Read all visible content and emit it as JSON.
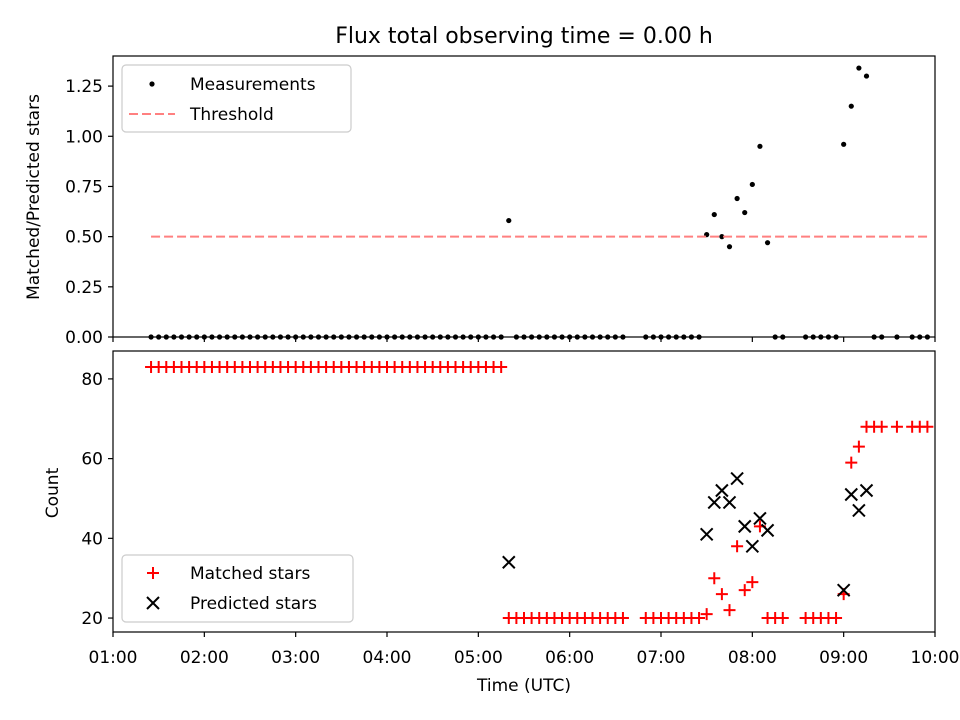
{
  "chart_data": [
    {
      "type": "scatter",
      "title": "Flux total observing time = 0.00 h",
      "xlabel": "",
      "ylabel": "Matched/Predicted stars",
      "xlim": [
        "01:00",
        "10:00"
      ],
      "ylim": [
        0,
        1.4
      ],
      "x_tick_labels": [],
      "y_tick_labels": [
        "0.00",
        "0.25",
        "0.50",
        "0.75",
        "1.00",
        "1.25"
      ],
      "legend_position": "top-left",
      "series": [
        {
          "name": "Measurements",
          "marker": "dot",
          "color": "#000000",
          "points": [
            [
              "01:25",
              0
            ],
            [
              "01:30",
              0
            ],
            [
              "01:35",
              0
            ],
            [
              "01:40",
              0
            ],
            [
              "01:45",
              0
            ],
            [
              "01:50",
              0
            ],
            [
              "01:55",
              0
            ],
            [
              "02:00",
              0
            ],
            [
              "02:05",
              0
            ],
            [
              "02:10",
              0
            ],
            [
              "02:15",
              0
            ],
            [
              "02:20",
              0
            ],
            [
              "02:25",
              0
            ],
            [
              "02:30",
              0
            ],
            [
              "02:35",
              0
            ],
            [
              "02:40",
              0
            ],
            [
              "02:45",
              0
            ],
            [
              "02:50",
              0
            ],
            [
              "02:55",
              0
            ],
            [
              "03:00",
              0
            ],
            [
              "03:05",
              0
            ],
            [
              "03:10",
              0
            ],
            [
              "03:15",
              0
            ],
            [
              "03:20",
              0
            ],
            [
              "03:25",
              0
            ],
            [
              "03:30",
              0
            ],
            [
              "03:35",
              0
            ],
            [
              "03:40",
              0
            ],
            [
              "03:45",
              0
            ],
            [
              "03:50",
              0
            ],
            [
              "03:55",
              0
            ],
            [
              "04:00",
              0
            ],
            [
              "04:05",
              0
            ],
            [
              "04:10",
              0
            ],
            [
              "04:15",
              0
            ],
            [
              "04:20",
              0
            ],
            [
              "04:25",
              0
            ],
            [
              "04:30",
              0
            ],
            [
              "04:35",
              0
            ],
            [
              "04:40",
              0
            ],
            [
              "04:45",
              0
            ],
            [
              "04:50",
              0
            ],
            [
              "04:55",
              0
            ],
            [
              "05:00",
              0
            ],
            [
              "05:05",
              0
            ],
            [
              "05:10",
              0
            ],
            [
              "05:15",
              0
            ],
            [
              "05:20",
              0.58
            ],
            [
              "05:25",
              0
            ],
            [
              "05:30",
              0
            ],
            [
              "05:35",
              0
            ],
            [
              "05:40",
              0
            ],
            [
              "05:45",
              0
            ],
            [
              "05:50",
              0
            ],
            [
              "05:55",
              0
            ],
            [
              "06:00",
              0
            ],
            [
              "06:05",
              0
            ],
            [
              "06:10",
              0
            ],
            [
              "06:15",
              0
            ],
            [
              "06:20",
              0
            ],
            [
              "06:25",
              0
            ],
            [
              "06:30",
              0
            ],
            [
              "06:35",
              0
            ],
            [
              "06:50",
              0
            ],
            [
              "06:55",
              0
            ],
            [
              "07:00",
              0
            ],
            [
              "07:05",
              0
            ],
            [
              "07:10",
              0
            ],
            [
              "07:15",
              0
            ],
            [
              "07:20",
              0
            ],
            [
              "07:25",
              0
            ],
            [
              "07:30",
              0.51
            ],
            [
              "07:35",
              0.61
            ],
            [
              "07:40",
              0.5
            ],
            [
              "07:45",
              0.45
            ],
            [
              "07:50",
              0.69
            ],
            [
              "07:55",
              0.62
            ],
            [
              "08:00",
              0.76
            ],
            [
              "08:05",
              0.95
            ],
            [
              "08:10",
              0.47
            ],
            [
              "08:15",
              0
            ],
            [
              "08:20",
              0
            ],
            [
              "08:35",
              0
            ],
            [
              "08:40",
              0
            ],
            [
              "08:45",
              0
            ],
            [
              "08:50",
              0
            ],
            [
              "08:55",
              0
            ],
            [
              "09:00",
              0.96
            ],
            [
              "09:05",
              1.15
            ],
            [
              "09:10",
              1.34
            ],
            [
              "09:15",
              1.3
            ],
            [
              "09:20",
              0
            ],
            [
              "09:25",
              0
            ],
            [
              "09:35",
              0
            ],
            [
              "09:45",
              0
            ],
            [
              "09:50",
              0
            ],
            [
              "09:55",
              0
            ]
          ]
        },
        {
          "name": "Threshold",
          "line_style": "dashed",
          "color": "#ff8080",
          "points": [
            [
              "01:25",
              0.5
            ],
            [
              "09:55",
              0.5
            ]
          ]
        }
      ]
    },
    {
      "type": "scatter",
      "title": "",
      "xlabel": "Time (UTC)",
      "ylabel": "Count",
      "xlim": [
        "01:00",
        "10:00"
      ],
      "ylim": [
        16.5,
        87
      ],
      "x_tick_labels": [
        "01:00",
        "02:00",
        "03:00",
        "04:00",
        "05:00",
        "06:00",
        "07:00",
        "08:00",
        "09:00",
        "10:00"
      ],
      "y_tick_labels": [
        "20",
        "40",
        "60",
        "80"
      ],
      "legend_position": "bottom-left",
      "series": [
        {
          "name": "Matched stars",
          "marker": "plus",
          "color": "#ff0000",
          "points": [
            [
              "01:25",
              83
            ],
            [
              "01:30",
              83
            ],
            [
              "01:35",
              83
            ],
            [
              "01:40",
              83
            ],
            [
              "01:45",
              83
            ],
            [
              "01:50",
              83
            ],
            [
              "01:55",
              83
            ],
            [
              "02:00",
              83
            ],
            [
              "02:05",
              83
            ],
            [
              "02:10",
              83
            ],
            [
              "02:15",
              83
            ],
            [
              "02:20",
              83
            ],
            [
              "02:25",
              83
            ],
            [
              "02:30",
              83
            ],
            [
              "02:35",
              83
            ],
            [
              "02:40",
              83
            ],
            [
              "02:45",
              83
            ],
            [
              "02:50",
              83
            ],
            [
              "02:55",
              83
            ],
            [
              "03:00",
              83
            ],
            [
              "03:05",
              83
            ],
            [
              "03:10",
              83
            ],
            [
              "03:15",
              83
            ],
            [
              "03:20",
              83
            ],
            [
              "03:25",
              83
            ],
            [
              "03:30",
              83
            ],
            [
              "03:35",
              83
            ],
            [
              "03:40",
              83
            ],
            [
              "03:45",
              83
            ],
            [
              "03:50",
              83
            ],
            [
              "03:55",
              83
            ],
            [
              "04:00",
              83
            ],
            [
              "04:05",
              83
            ],
            [
              "04:10",
              83
            ],
            [
              "04:15",
              83
            ],
            [
              "04:20",
              83
            ],
            [
              "04:25",
              83
            ],
            [
              "04:30",
              83
            ],
            [
              "04:35",
              83
            ],
            [
              "04:40",
              83
            ],
            [
              "04:45",
              83
            ],
            [
              "04:50",
              83
            ],
            [
              "04:55",
              83
            ],
            [
              "05:00",
              83
            ],
            [
              "05:05",
              83
            ],
            [
              "05:10",
              83
            ],
            [
              "05:15",
              83
            ],
            [
              "05:20",
              20
            ],
            [
              "05:25",
              20
            ],
            [
              "05:30",
              20
            ],
            [
              "05:35",
              20
            ],
            [
              "05:40",
              20
            ],
            [
              "05:45",
              20
            ],
            [
              "05:50",
              20
            ],
            [
              "05:55",
              20
            ],
            [
              "06:00",
              20
            ],
            [
              "06:05",
              20
            ],
            [
              "06:10",
              20
            ],
            [
              "06:15",
              20
            ],
            [
              "06:20",
              20
            ],
            [
              "06:25",
              20
            ],
            [
              "06:30",
              20
            ],
            [
              "06:35",
              20
            ],
            [
              "06:50",
              20
            ],
            [
              "06:55",
              20
            ],
            [
              "07:00",
              20
            ],
            [
              "07:05",
              20
            ],
            [
              "07:10",
              20
            ],
            [
              "07:15",
              20
            ],
            [
              "07:20",
              20
            ],
            [
              "07:25",
              20
            ],
            [
              "07:30",
              21
            ],
            [
              "07:35",
              30
            ],
            [
              "07:40",
              26
            ],
            [
              "07:45",
              22
            ],
            [
              "07:50",
              38
            ],
            [
              "07:55",
              27
            ],
            [
              "08:00",
              29
            ],
            [
              "08:05",
              43
            ],
            [
              "08:10",
              20
            ],
            [
              "08:15",
              20
            ],
            [
              "08:20",
              20
            ],
            [
              "08:35",
              20
            ],
            [
              "08:40",
              20
            ],
            [
              "08:45",
              20
            ],
            [
              "08:50",
              20
            ],
            [
              "08:55",
              20
            ],
            [
              "09:00",
              26
            ],
            [
              "09:05",
              59
            ],
            [
              "09:10",
              63
            ],
            [
              "09:15",
              68
            ],
            [
              "09:20",
              68
            ],
            [
              "09:25",
              68
            ],
            [
              "09:35",
              68
            ],
            [
              "09:45",
              68
            ],
            [
              "09:50",
              68
            ],
            [
              "09:55",
              68
            ]
          ]
        },
        {
          "name": "Predicted stars",
          "marker": "x",
          "color": "#000000",
          "points": [
            [
              "05:20",
              34
            ],
            [
              "07:30",
              41
            ],
            [
              "07:35",
              49
            ],
            [
              "07:40",
              52
            ],
            [
              "07:45",
              49
            ],
            [
              "07:50",
              55
            ],
            [
              "07:55",
              43
            ],
            [
              "08:00",
              38
            ],
            [
              "08:05",
              45
            ],
            [
              "08:10",
              42
            ],
            [
              "09:00",
              27
            ],
            [
              "09:05",
              51
            ],
            [
              "09:10",
              47
            ],
            [
              "09:15",
              52
            ]
          ]
        }
      ]
    }
  ]
}
